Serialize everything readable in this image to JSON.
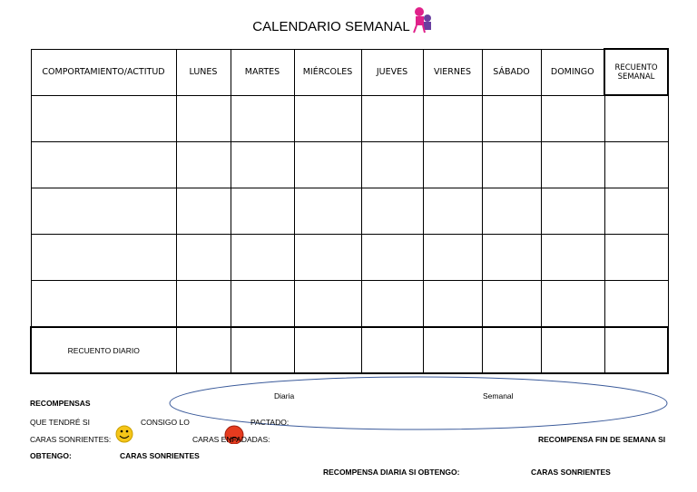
{
  "title": "CALENDARIO SEMANAL",
  "table": {
    "headers": [
      "COMPORTAMIENTO/ACTITUD",
      "LUNES",
      "MARTES",
      "MIÉRCOLES",
      "JUEVES",
      "VIERNES",
      "SÁBADO",
      "DOMINGO",
      "RECUENTO SEMANAL"
    ],
    "footer_row_label": "RECUENTO DIARIO"
  },
  "rewards": {
    "heading": "RECOMPENSAS",
    "oval_labels": [
      "Diaria",
      "Semanal"
    ],
    "texts": [
      "QUE TENDRÉ SI",
      "CONSIGO LO",
      "PACTADO:",
      "CARAS SONRIENTES:",
      "CARAS ENFADADAS:",
      "RECOMPENSA FIN DE SEMANA SI",
      "OBTENGO:",
      "CARAS SONRIENTES",
      "RECOMPENSA DIARIA SI OBTENGO:",
      "CARAS SONRIENTES"
    ]
  }
}
